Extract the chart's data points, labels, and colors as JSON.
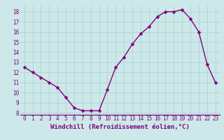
{
  "x": [
    0,
    1,
    2,
    3,
    4,
    5,
    6,
    7,
    8,
    9,
    10,
    11,
    12,
    13,
    14,
    15,
    16,
    17,
    18,
    19,
    20,
    21,
    22,
    23
  ],
  "y": [
    12.5,
    12.0,
    11.5,
    11.0,
    10.5,
    9.5,
    8.5,
    8.2,
    8.2,
    8.2,
    10.3,
    12.5,
    13.5,
    14.8,
    15.8,
    16.5,
    17.5,
    18.0,
    18.0,
    18.2,
    17.3,
    16.0,
    12.8,
    11.0
  ],
  "line_color": "#800080",
  "marker": "D",
  "marker_size": 2.5,
  "background_color": "#cce8e8",
  "grid_color": "#a8d0d0",
  "xlabel": "Windchill (Refroidissement éolien,°C)",
  "xlim": [
    -0.5,
    23.5
  ],
  "ylim": [
    7.8,
    18.6
  ],
  "yticks": [
    8,
    9,
    10,
    11,
    12,
    13,
    14,
    15,
    16,
    17,
    18
  ],
  "xticks": [
    0,
    1,
    2,
    3,
    4,
    5,
    6,
    7,
    8,
    9,
    10,
    11,
    12,
    13,
    14,
    15,
    16,
    17,
    18,
    19,
    20,
    21,
    22,
    23
  ],
  "tick_label_fontsize": 5.5,
  "xlabel_fontsize": 6.5,
  "line_width": 1.0
}
